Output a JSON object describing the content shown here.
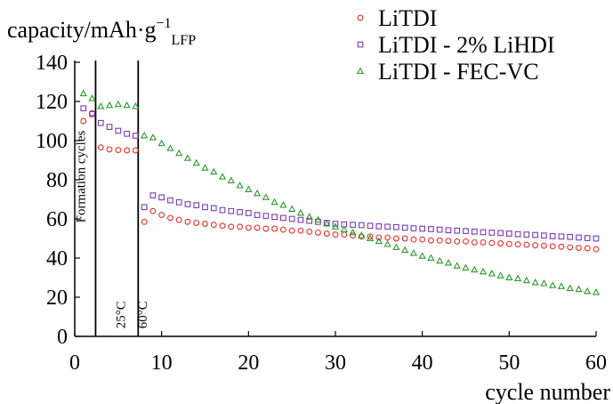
{
  "chart_data": {
    "type": "scatter",
    "ylabel_main": "capacity/mAh·g",
    "ylabel_sup": "−1",
    "ylabel_sub": "LFP",
    "xlabel": "cycle number",
    "xlim": [
      0,
      60
    ],
    "ylim": [
      0,
      140
    ],
    "xticks": [
      0,
      10,
      20,
      30,
      40,
      50,
      60
    ],
    "yticks": [
      0,
      20,
      40,
      60,
      80,
      100,
      120,
      140
    ],
    "grid": false,
    "legend_position": "top-right",
    "vlines": [
      2.4,
      7.3
    ],
    "annotations": [
      {
        "text": "Formation cycles",
        "x": 1.2,
        "y": 58
      },
      {
        "text": "25°C",
        "x": 5.8,
        "y": 4
      },
      {
        "text": "60°C",
        "x": 8.3,
        "y": 4
      }
    ],
    "series": [
      {
        "name": "LiTDI",
        "marker": "circle",
        "color": "#e8302a",
        "x": [
          1,
          2,
          3,
          4,
          5,
          6,
          7,
          8,
          9,
          10,
          11,
          12,
          13,
          14,
          15,
          16,
          17,
          18,
          19,
          20,
          21,
          22,
          23,
          24,
          25,
          26,
          27,
          28,
          29,
          30,
          31,
          32,
          33,
          34,
          35,
          36,
          37,
          38,
          39,
          40,
          41,
          42,
          43,
          44,
          45,
          46,
          47,
          48,
          49,
          50,
          51,
          52,
          53,
          54,
          55,
          56,
          57,
          58,
          59,
          60
        ],
        "y": [
          110,
          114,
          96.5,
          95.5,
          95.2,
          95,
          95,
          58.5,
          64,
          62,
          60.5,
          59.5,
          58.5,
          58,
          57.5,
          57,
          56.5,
          56,
          56,
          55.5,
          55.5,
          55,
          55,
          54.5,
          54,
          54,
          53.5,
          53,
          52.5,
          52,
          52,
          51.5,
          51,
          51,
          50.5,
          50.5,
          50,
          50,
          49.5,
          49.5,
          49,
          49,
          48.8,
          48.5,
          48.5,
          48,
          48,
          47.7,
          47.5,
          47.2,
          47,
          46.8,
          46.5,
          46.3,
          46,
          45.8,
          45.5,
          45.2,
          45,
          44.5
        ]
      },
      {
        "name": "LiTDI - 2% LiHDI",
        "marker": "square",
        "color": "#7b3ab0",
        "x": [
          1,
          2,
          3,
          4,
          5,
          6,
          7,
          8,
          9,
          10,
          11,
          12,
          13,
          14,
          15,
          16,
          17,
          18,
          19,
          20,
          21,
          22,
          23,
          24,
          25,
          26,
          27,
          28,
          29,
          30,
          31,
          32,
          33,
          34,
          35,
          36,
          37,
          38,
          39,
          40,
          41,
          42,
          43,
          44,
          45,
          46,
          47,
          48,
          49,
          50,
          51,
          52,
          53,
          54,
          55,
          56,
          57,
          58,
          59,
          60
        ],
        "y": [
          116.5,
          113.5,
          109,
          107,
          105,
          103.5,
          102.5,
          66,
          72,
          71,
          69.5,
          68.5,
          67.5,
          67,
          66,
          65.5,
          64.5,
          64,
          63.5,
          63,
          62,
          61.5,
          61,
          60.5,
          60,
          59.5,
          59,
          58.5,
          58,
          57.5,
          57.2,
          57,
          56.8,
          56.5,
          56.2,
          56,
          55.8,
          55.5,
          55.2,
          55,
          54.8,
          54.5,
          54.2,
          54,
          53.8,
          53.5,
          53.2,
          53,
          52.8,
          52.5,
          52.2,
          52,
          51.8,
          51.5,
          51.2,
          51,
          50.8,
          50.5,
          50.2,
          50
        ]
      },
      {
        "name": "LiTDI - FEC-VC",
        "marker": "triangle",
        "color": "#2a9a2a",
        "x": [
          1,
          2,
          3,
          4,
          5,
          6,
          7,
          8,
          9,
          10,
          11,
          12,
          13,
          14,
          15,
          16,
          17,
          18,
          19,
          20,
          21,
          22,
          23,
          24,
          25,
          26,
          27,
          28,
          29,
          30,
          31,
          32,
          33,
          34,
          35,
          36,
          37,
          38,
          39,
          40,
          41,
          42,
          43,
          44,
          45,
          46,
          47,
          48,
          49,
          50,
          51,
          52,
          53,
          54,
          55,
          56,
          57,
          58,
          59,
          60
        ],
        "y": [
          124,
          121.5,
          117.5,
          118,
          118.5,
          118,
          117.5,
          102.5,
          101.5,
          98.5,
          96,
          93.5,
          91,
          88.5,
          86,
          84,
          81.5,
          79.5,
          77,
          75,
          73,
          71,
          68.5,
          67,
          65,
          63,
          61,
          59.5,
          57.5,
          56,
          54.5,
          53,
          51.5,
          50,
          48.5,
          47,
          45.5,
          44,
          42.5,
          41,
          40,
          38.5,
          37.5,
          36,
          35,
          34,
          33,
          32,
          31,
          30,
          29.5,
          28.5,
          27.5,
          27,
          26,
          25.5,
          24.5,
          24,
          23,
          22.5
        ]
      }
    ]
  }
}
